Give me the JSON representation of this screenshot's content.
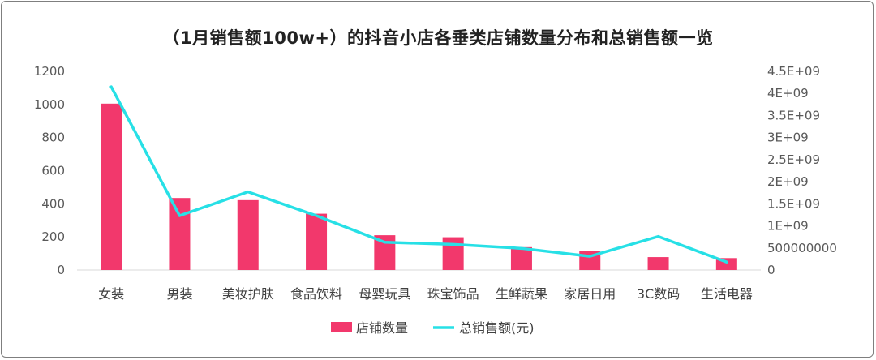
{
  "chart_data": {
    "type": "bar+line",
    "title": "（1月销售额100w+）的抖音小店各垂类店铺数量分布和总销售额一览",
    "categories": [
      "女装",
      "男装",
      "美妆护肤",
      "食品饮料",
      "母婴玩具",
      "珠宝饰品",
      "生鲜蔬果",
      "家居日用",
      "3C数码",
      "生活电器"
    ],
    "series": [
      {
        "name": "店铺数量",
        "type": "bar",
        "axis": "left",
        "color": "#f2386c",
        "values": [
          1005,
          435,
          422,
          340,
          210,
          198,
          138,
          115,
          78,
          72
        ]
      },
      {
        "name": "总销售额(元)",
        "type": "line",
        "axis": "right",
        "color": "#27e0e6",
        "values": [
          4150000000,
          1230000000,
          1770000000,
          1230000000,
          630000000,
          580000000,
          490000000,
          310000000,
          760000000,
          180000000
        ]
      }
    ],
    "y_left": {
      "ylim": [
        0,
        1200
      ],
      "ticks": [
        "0",
        "200",
        "400",
        "600",
        "800",
        "1000",
        "1200"
      ]
    },
    "y_right": {
      "ylim": [
        0,
        4500000000
      ],
      "ticks": [
        "0",
        "500000000",
        "1E+09",
        "1.5E+09",
        "2E+09",
        "2.5E+09",
        "3E+09",
        "3.5E+09",
        "4E+09",
        "4.5E+09"
      ]
    },
    "legend_position": "bottom",
    "grid": false
  }
}
